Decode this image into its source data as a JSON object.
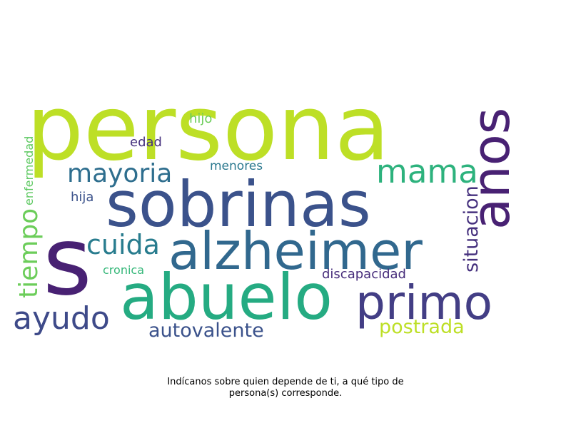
{
  "words": [
    {
      "text": "persona",
      "color": "#bddf26"
    },
    {
      "text": "sobrinas",
      "color": "#3b528b"
    },
    {
      "text": "s",
      "color": "#482173"
    },
    {
      "text": "alzheimer",
      "color": "#31688e"
    },
    {
      "text": "abuelo",
      "color": "#25ab82"
    },
    {
      "text": "primo",
      "color": "#433e85"
    },
    {
      "text": "anos",
      "color": "#482173"
    },
    {
      "text": "mama",
      "color": "#2db27d"
    },
    {
      "text": "mayoria",
      "color": "#2e6e8e"
    },
    {
      "text": "cuida",
      "color": "#287c8e"
    },
    {
      "text": "ayudo",
      "color": "#3e4a89"
    },
    {
      "text": "tiempo",
      "color": "#6ccd5a"
    },
    {
      "text": "situacion",
      "color": "#46317e"
    },
    {
      "text": "autovalente",
      "color": "#3b528b"
    },
    {
      "text": "postrada",
      "color": "#bddf26"
    },
    {
      "text": "enfermedad",
      "color": "#5ec962"
    },
    {
      "text": "discapacidad",
      "color": "#472d7b"
    },
    {
      "text": "cronica",
      "color": "#35b779"
    },
    {
      "text": "menores",
      "color": "#2a788e"
    },
    {
      "text": "edad",
      "color": "#46327e"
    },
    {
      "text": "hijo",
      "color": "#6ccd5a"
    },
    {
      "text": "hija",
      "color": "#3b528b"
    }
  ],
  "caption": {
    "line1": "Indícanos sobre quien depende de ti, a qué tipo de",
    "line2": "persona(s) corresponde."
  }
}
